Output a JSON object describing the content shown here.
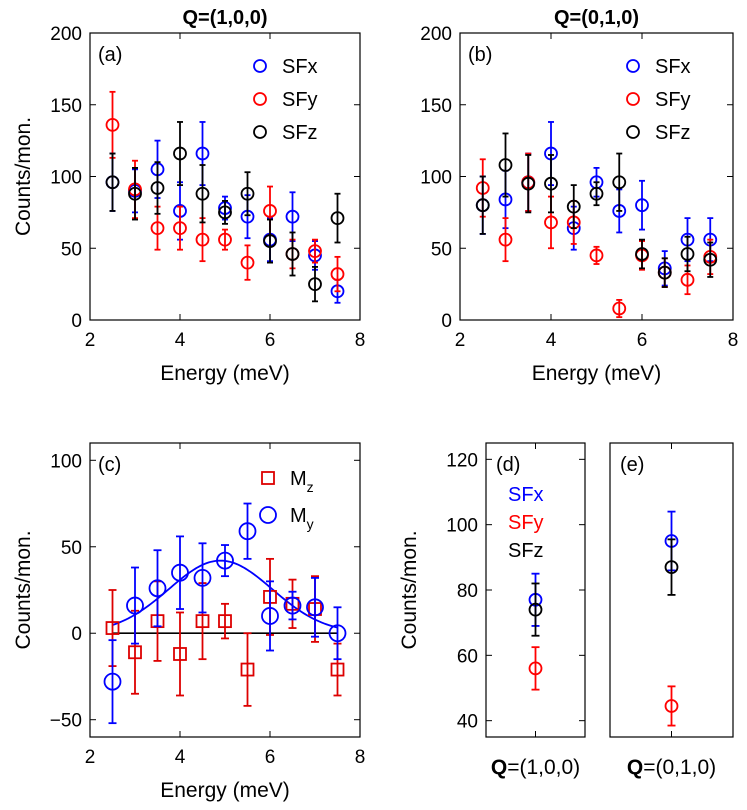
{
  "colors": {
    "SFx": "#0000ff",
    "SFy": "#ff0000",
    "SFz": "#000000",
    "Mz": "#dd0000",
    "My": "#0000ff",
    "fit": "#0000ff",
    "zero": "#000000"
  },
  "chart_data": [
    {
      "id": "a",
      "type": "scatter",
      "title": "Q=(1,0,0)",
      "panel_label": "(a)",
      "xlabel": "Energy (meV)",
      "ylabel": "Counts/mon.",
      "xlim": [
        2,
        8
      ],
      "ylim": [
        0,
        200
      ],
      "xticks": [
        2,
        4,
        6,
        8
      ],
      "yticks": [
        0,
        50,
        100,
        150,
        200
      ],
      "legend_position": "top-right",
      "series": [
        {
          "name": "SFx",
          "color_key": "SFx",
          "x": [
            2.5,
            3.0,
            3.5,
            4.0,
            4.5,
            5.0,
            5.5,
            6.0,
            6.5,
            7.0,
            7.5
          ],
          "y": [
            96,
            90,
            105,
            76,
            116,
            78,
            72,
            56,
            72,
            45,
            20
          ],
          "err": [
            20,
            15,
            20,
            20,
            22,
            8,
            15,
            15,
            17,
            10,
            8
          ]
        },
        {
          "name": "SFy",
          "color_key": "SFy",
          "x": [
            2.5,
            3.0,
            3.5,
            4.0,
            4.5,
            5.0,
            5.5,
            6.0,
            6.5,
            7.0,
            7.5
          ],
          "y": [
            136,
            91,
            64,
            64,
            56,
            56,
            40,
            76,
            46,
            48,
            32
          ],
          "err": [
            23,
            20,
            15,
            15,
            15,
            7,
            12,
            17,
            10,
            8,
            12
          ]
        },
        {
          "name": "SFz",
          "color_key": "SFz",
          "x": [
            2.5,
            3.0,
            3.5,
            4.0,
            4.5,
            5.0,
            5.5,
            6.0,
            6.5,
            7.0,
            7.5
          ],
          "y": [
            96,
            88,
            92,
            116,
            88,
            75,
            88,
            55,
            46,
            25,
            71
          ],
          "err": [
            20,
            18,
            18,
            22,
            20,
            8,
            15,
            15,
            15,
            12,
            17
          ]
        }
      ]
    },
    {
      "id": "b",
      "type": "scatter",
      "title": "Q=(0,1,0)",
      "panel_label": "(b)",
      "xlabel": "Energy (meV)",
      "ylabel": "",
      "xlim": [
        2,
        8
      ],
      "ylim": [
        0,
        200
      ],
      "xticks": [
        2,
        4,
        6,
        8
      ],
      "yticks": [
        0,
        50,
        100,
        150,
        200
      ],
      "legend_position": "top-right",
      "series": [
        {
          "name": "SFx",
          "color_key": "SFx",
          "x": [
            2.5,
            3.0,
            3.5,
            4.0,
            4.5,
            5.0,
            5.5,
            6.0,
            6.5,
            7.0,
            7.5
          ],
          "y": [
            80,
            84,
            96,
            116,
            64,
            96,
            76,
            80,
            36,
            56,
            56
          ],
          "err": [
            20,
            20,
            20,
            22,
            15,
            10,
            15,
            17,
            12,
            15,
            15
          ]
        },
        {
          "name": "SFy",
          "color_key": "SFy",
          "x": [
            2.5,
            3.0,
            3.5,
            4.0,
            4.5,
            5.0,
            5.5,
            6.0,
            6.5,
            7.0,
            7.5
          ],
          "y": [
            92,
            56,
            96,
            68,
            68,
            45,
            8,
            45,
            33,
            28,
            44
          ],
          "err": [
            20,
            15,
            20,
            18,
            15,
            6,
            6,
            10,
            10,
            10,
            12
          ]
        },
        {
          "name": "SFz",
          "color_key": "SFz",
          "x": [
            2.5,
            3.0,
            3.5,
            4.0,
            4.5,
            5.0,
            5.5,
            6.0,
            6.5,
            7.0,
            7.5
          ],
          "y": [
            80,
            108,
            95,
            95,
            79,
            88,
            96,
            46,
            33,
            46,
            42
          ],
          "err": [
            20,
            22,
            20,
            20,
            15,
            8,
            20,
            10,
            10,
            12,
            12
          ]
        }
      ]
    },
    {
      "id": "c",
      "type": "scatter",
      "panel_label": "(c)",
      "xlabel": "Energy (meV)",
      "ylabel": "Counts/mon.",
      "xlim": [
        2,
        8
      ],
      "ylim": [
        -60,
        110
      ],
      "xticks": [
        2,
        4,
        6,
        8
      ],
      "yticks": [
        -50,
        0,
        50,
        100
      ],
      "legend_position": "top-right",
      "series": [
        {
          "name": "Mz",
          "marker": "square",
          "color_key": "Mz",
          "x": [
            2.5,
            3.0,
            3.5,
            4.0,
            4.5,
            5.0,
            5.5,
            6.0,
            6.5,
            7.0,
            7.5
          ],
          "y": [
            3,
            -11,
            7,
            -12,
            7,
            7,
            -21,
            21,
            17,
            14,
            -21
          ],
          "err": [
            22,
            24,
            23,
            24,
            22,
            10,
            21,
            22,
            14,
            19,
            15
          ]
        },
        {
          "name": "My",
          "marker": "circle",
          "color_key": "My",
          "x": [
            2.5,
            3.0,
            3.5,
            4.0,
            4.5,
            5.0,
            5.5,
            6.0,
            6.5,
            7.0,
            7.5
          ],
          "y": [
            -28,
            16,
            26,
            35,
            32,
            42,
            59,
            10,
            16,
            15,
            0
          ],
          "err": [
            24,
            22,
            22,
            21,
            20,
            9,
            16,
            20,
            8,
            17,
            15
          ]
        }
      ],
      "fit": {
        "name": "Gaussian fit",
        "amplitude": 42,
        "center": 4.9,
        "sigma": 1.15,
        "x_range": [
          2.5,
          7.5
        ]
      },
      "zero_line": {
        "x_range": [
          2.5,
          7.5
        ],
        "y": 0
      }
    },
    {
      "id": "d",
      "type": "scatter",
      "panel_label": "(d)",
      "xlabel": "=(1,0,0)",
      "xlabel_bold_prefix": "Q",
      "ylabel": "Counts/mon.",
      "ylim": [
        35,
        125
      ],
      "yticks": [
        40,
        60,
        80,
        100,
        120
      ],
      "legend_position": "top-left",
      "series": [
        {
          "name": "SFx",
          "color_key": "SFx",
          "y": 77,
          "err": 8
        },
        {
          "name": "SFy",
          "color_key": "SFy",
          "y": 56,
          "err": 6.5
        },
        {
          "name": "SFz",
          "color_key": "SFz",
          "y": 74,
          "err": 8
        }
      ]
    },
    {
      "id": "e",
      "type": "scatter",
      "panel_label": "(e)",
      "xlabel": "=(0,1,0)",
      "xlabel_bold_prefix": "Q",
      "ylim": [
        35,
        125
      ],
      "series": [
        {
          "name": "SFx",
          "color_key": "SFx",
          "y": 95,
          "err": 9
        },
        {
          "name": "SFy",
          "color_key": "SFy",
          "y": 44.5,
          "err": 6
        },
        {
          "name": "SFz",
          "color_key": "SFz",
          "y": 87,
          "err": 8.5
        }
      ]
    }
  ]
}
